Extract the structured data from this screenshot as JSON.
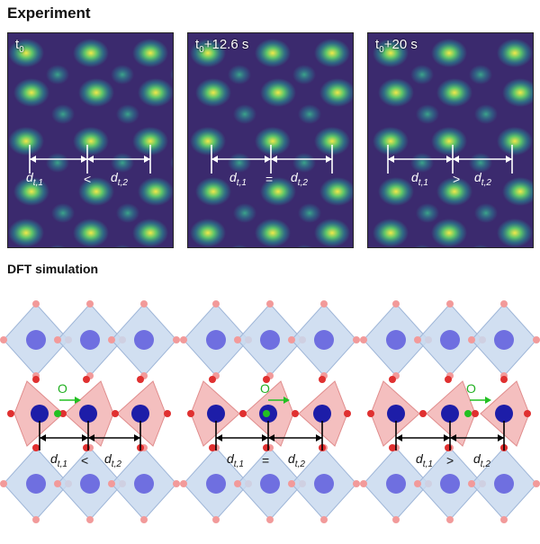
{
  "sections": {
    "experiment_title": "Experiment",
    "dft_title": "DFT simulation"
  },
  "panels": [
    {
      "time_base": "t",
      "time_sub": "0",
      "time_suffix": "",
      "operator": "<"
    },
    {
      "time_base": "t",
      "time_sub": "0",
      "time_suffix": "+12.6 s",
      "operator": "="
    },
    {
      "time_base": "t",
      "time_sub": "0",
      "time_suffix": "+20 s",
      "operator": ">"
    }
  ],
  "distance_labels": {
    "d1_base": "d",
    "d1_sub": "t,1",
    "d2_base": "d",
    "d2_sub": "t,2"
  },
  "atom_label": "O",
  "colors": {
    "map_background": "#3b2a6e",
    "map_peak": "#f2e84a",
    "octa_blue": "#c9d9ef",
    "octa_red": "#f3b8b8",
    "atom_blue_light": "#6f6fe0",
    "atom_blue_dark": "#1d1da8",
    "oxygen_red": "#e03030",
    "oxygen_light": "#f29a9a",
    "oxygen_green": "#22c022"
  }
}
